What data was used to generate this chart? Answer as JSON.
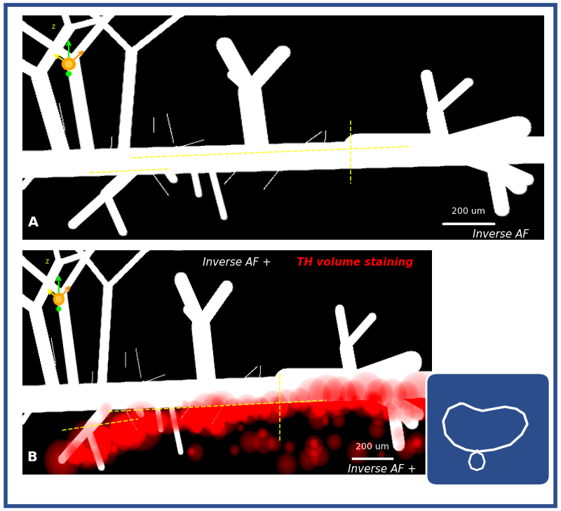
{
  "background_color": "#ffffff",
  "border_color": "#2b4d8c",
  "border_linewidth": 4,
  "panel_bg": "#000000",
  "panel_A_label": "A",
  "panel_B_label": "B",
  "panel_A_title": "Inverse AF",
  "panel_B_title_white": "Inverse AF + ",
  "panel_B_title_red": "TH volume staining",
  "scale_bar_text": "200 um",
  "logo_bg_color": "#2b4d8c",
  "title_fontsize": 11,
  "label_fontsize": 14,
  "scale_fontsize": 9,
  "fig_width": 8.0,
  "fig_height": 7.29
}
